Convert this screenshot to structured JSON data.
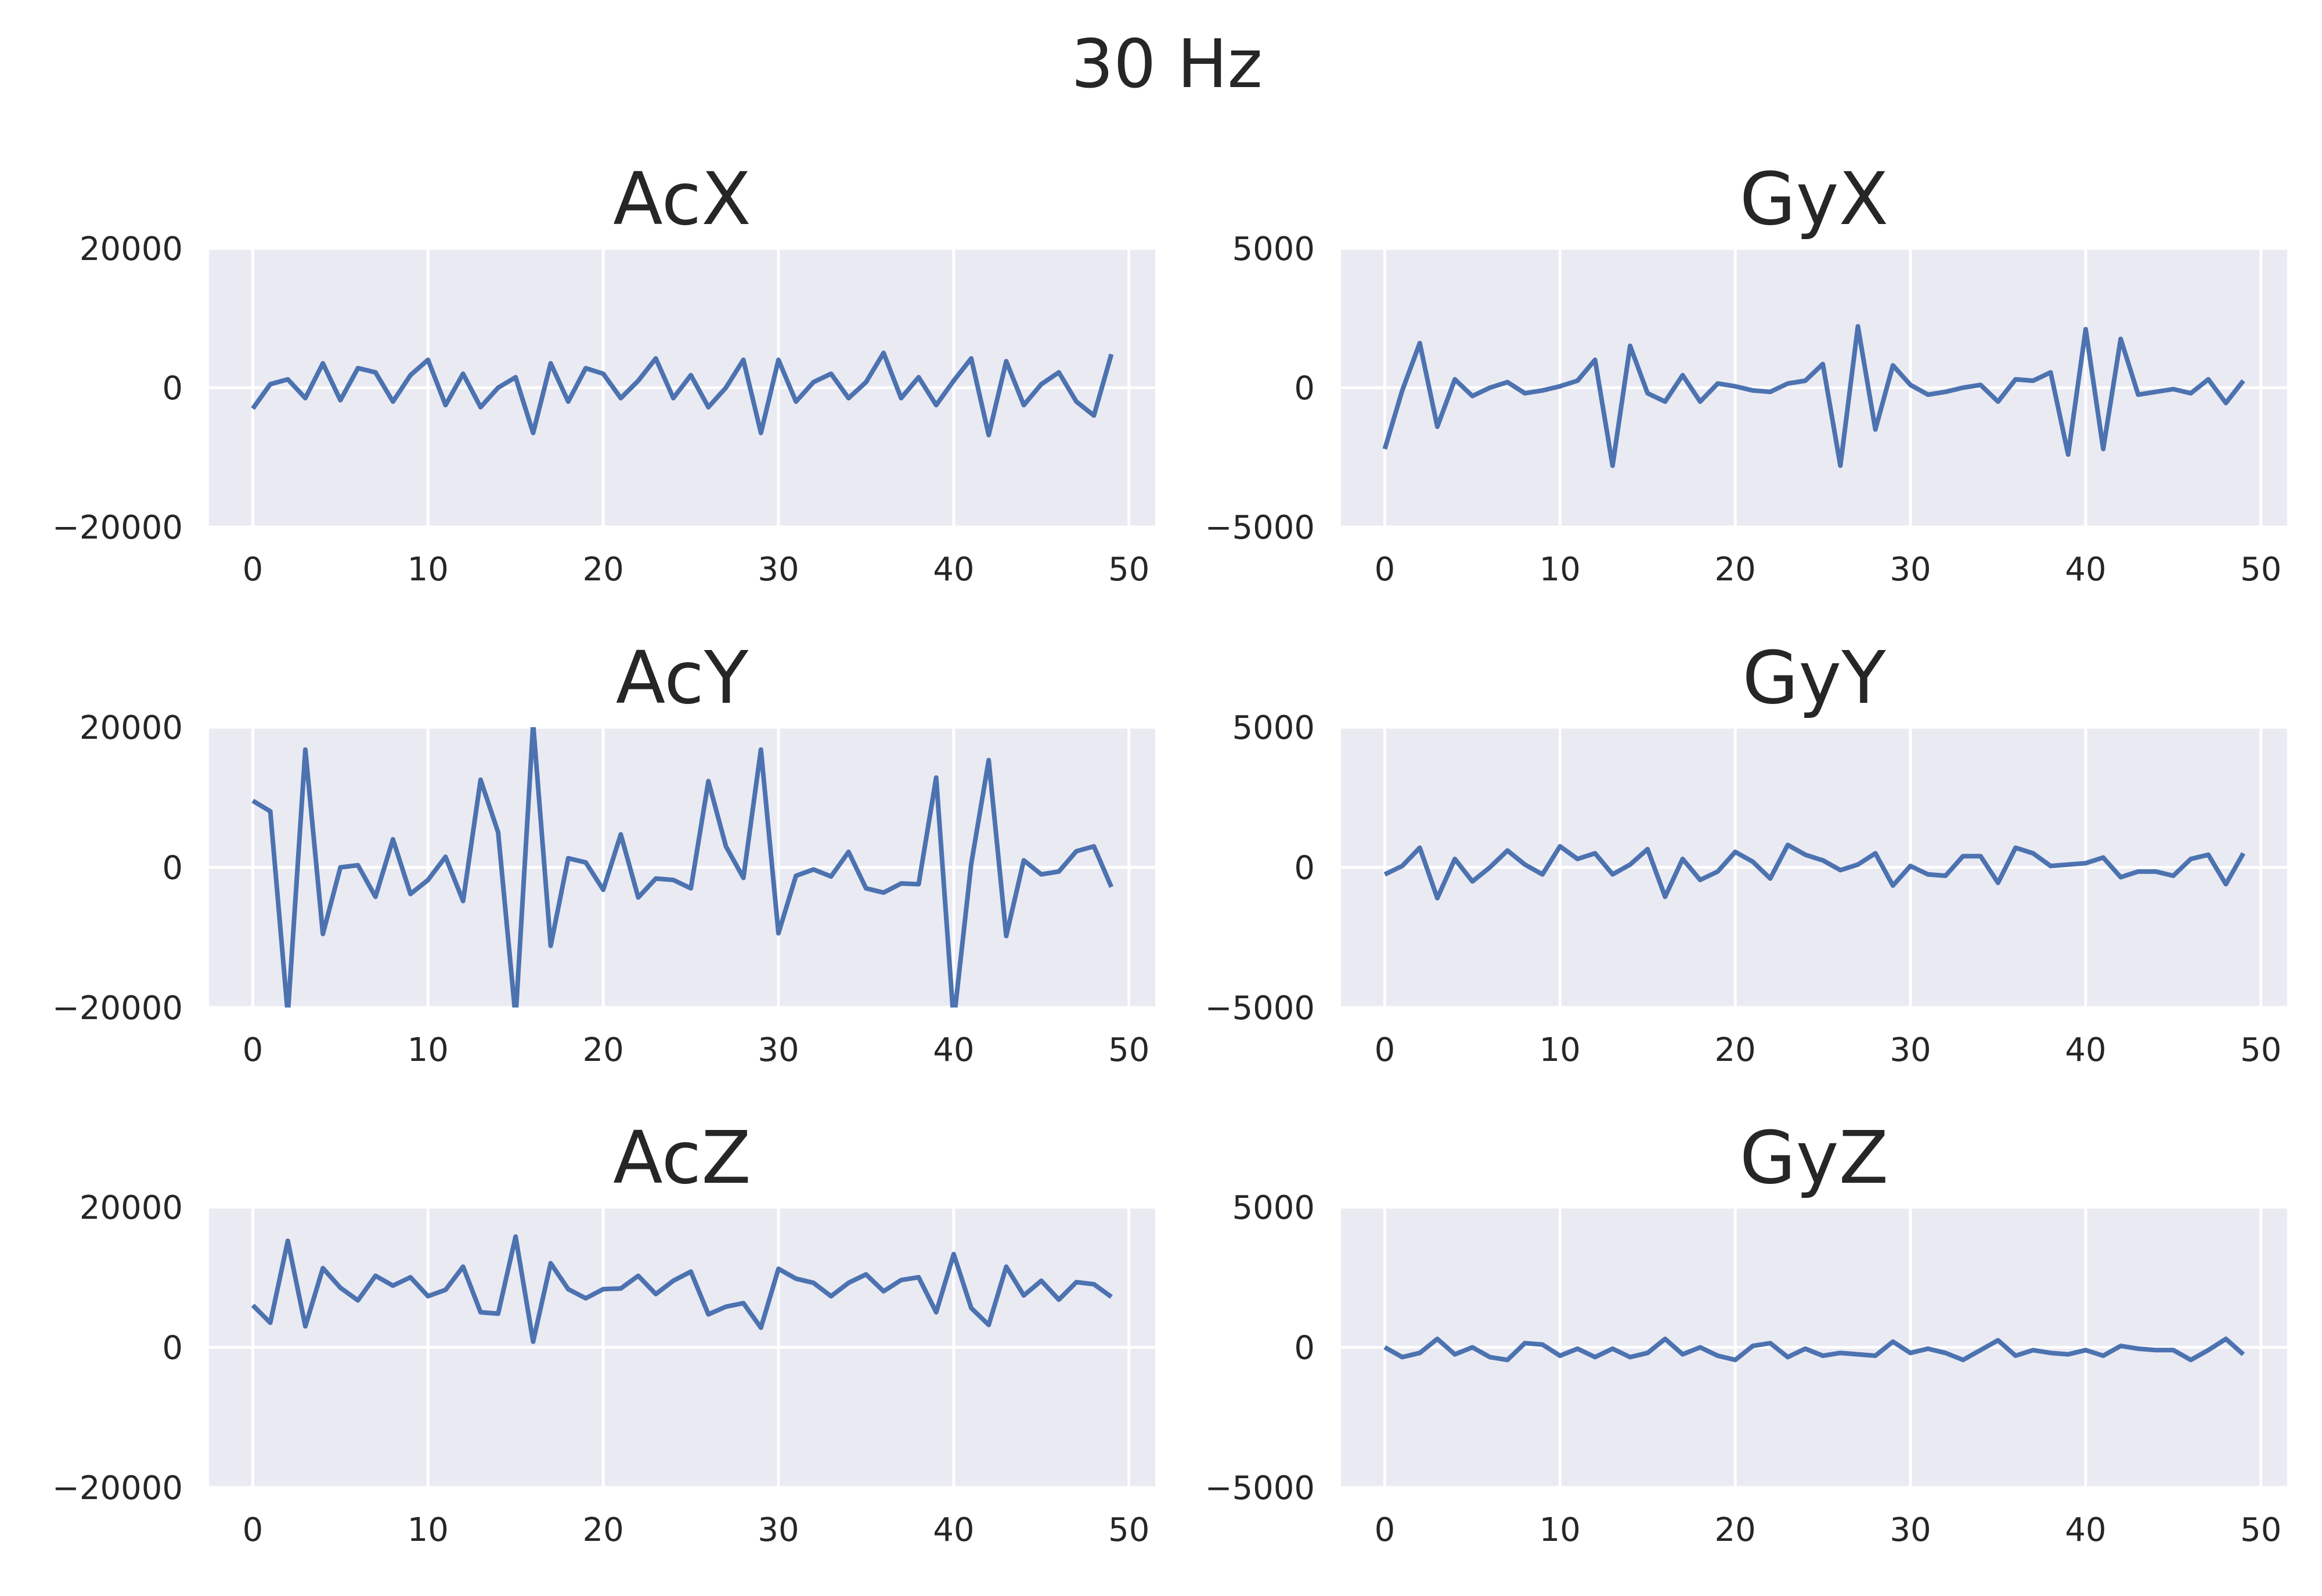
{
  "chart_data": {
    "type": "line",
    "title": "30 Hz",
    "subplots": [
      {
        "title": "AcX",
        "xticks": [
          0,
          10,
          20,
          30,
          40,
          50
        ],
        "yticks": [
          -20000,
          0,
          20000
        ],
        "ytick_labels": [
          "−20000",
          "0",
          "20000"
        ],
        "xlim": [
          -2.5,
          51.5
        ],
        "ylim": [
          -20000,
          20000
        ],
        "grid": true,
        "x": [
          0,
          1,
          2,
          3,
          4,
          5,
          6,
          7,
          8,
          9,
          10,
          11,
          12,
          13,
          14,
          15,
          16,
          17,
          18,
          19,
          20,
          21,
          22,
          23,
          24,
          25,
          26,
          27,
          28,
          29,
          30,
          31,
          32,
          33,
          34,
          35,
          36,
          37,
          38,
          39,
          40,
          41,
          42,
          43,
          44,
          45,
          46,
          47,
          48,
          49
        ],
        "values": [
          -3000,
          500,
          1200,
          -1500,
          3500,
          -1800,
          2800,
          2200,
          -2000,
          1800,
          4000,
          -2500,
          2000,
          -2800,
          0,
          1500,
          -6500,
          3500,
          -2000,
          2800,
          2000,
          -1500,
          1000,
          4200,
          -1500,
          1800,
          -2800,
          0,
          4000,
          -6500,
          4000,
          -2000,
          800,
          2000,
          -1500,
          800,
          5000,
          -1500,
          1500,
          -2500,
          1000,
          4200,
          -6800,
          3800,
          -2500,
          500,
          2200,
          -2000,
          -4000,
          4800
        ]
      },
      {
        "title": "GyX",
        "xticks": [
          0,
          10,
          20,
          30,
          40,
          50
        ],
        "yticks": [
          -5000,
          0,
          5000
        ],
        "ytick_labels": [
          "−5000",
          "0",
          "5000"
        ],
        "xlim": [
          -2.5,
          51.5
        ],
        "ylim": [
          -5000,
          5000
        ],
        "grid": true,
        "x": [
          0,
          1,
          2,
          3,
          4,
          5,
          6,
          7,
          8,
          9,
          10,
          11,
          12,
          13,
          14,
          15,
          16,
          17,
          18,
          19,
          20,
          21,
          22,
          23,
          24,
          25,
          26,
          27,
          28,
          29,
          30,
          31,
          32,
          33,
          34,
          35,
          36,
          37,
          38,
          39,
          40,
          41,
          42,
          43,
          44,
          45,
          46,
          47,
          48,
          49
        ],
        "values": [
          -2200,
          -100,
          1600,
          -1400,
          300,
          -300,
          0,
          200,
          -200,
          -100,
          50,
          250,
          1000,
          -2800,
          1500,
          -200,
          -500,
          450,
          -500,
          150,
          50,
          -100,
          -150,
          150,
          250,
          850,
          -2800,
          2200,
          -1500,
          800,
          100,
          -250,
          -150,
          0,
          100,
          -500,
          300,
          250,
          550,
          -2400,
          2100,
          -2200,
          1750,
          -250,
          -150,
          -50,
          -200,
          300,
          -550,
          250
        ]
      },
      {
        "title": "AcY",
        "xticks": [
          0,
          10,
          20,
          30,
          40,
          50
        ],
        "yticks": [
          -20000,
          0,
          20000
        ],
        "ytick_labels": [
          "−20000",
          "0",
          "20000"
        ],
        "xlim": [
          -2.5,
          51.5
        ],
        "ylim": [
          -20000,
          20000
        ],
        "grid": true,
        "x": [
          0,
          1,
          2,
          3,
          4,
          5,
          6,
          7,
          8,
          9,
          10,
          11,
          12,
          13,
          14,
          15,
          16,
          17,
          18,
          19,
          20,
          21,
          22,
          23,
          24,
          25,
          26,
          27,
          28,
          29,
          30,
          31,
          32,
          33,
          34,
          35,
          36,
          37,
          38,
          39,
          40,
          41,
          42,
          43,
          44,
          45,
          46,
          47,
          48,
          49
        ],
        "values": [
          9500,
          8000,
          -21000,
          16800,
          -9500,
          0,
          300,
          -4200,
          4000,
          -3800,
          -1800,
          1500,
          -4800,
          12500,
          5000,
          -21500,
          20500,
          -11200,
          1300,
          700,
          -3200,
          4700,
          -4300,
          -1600,
          -1800,
          -3000,
          12300,
          3000,
          -1500,
          16800,
          -9400,
          -1200,
          -300,
          -1300,
          2200,
          -3000,
          -3600,
          -2300,
          -2400,
          12800,
          -22000,
          500,
          15300,
          -9800,
          1000,
          -1000,
          -600,
          2300,
          3000,
          -2800
        ]
      },
      {
        "title": "GyY",
        "xticks": [
          0,
          10,
          20,
          30,
          40,
          50
        ],
        "yticks": [
          -5000,
          0,
          5000
        ],
        "ytick_labels": [
          "−5000",
          "0",
          "5000"
        ],
        "xlim": [
          -2.5,
          51.5
        ],
        "ylim": [
          -5000,
          5000
        ],
        "grid": true,
        "x": [
          0,
          1,
          2,
          3,
          4,
          5,
          6,
          7,
          8,
          9,
          10,
          11,
          12,
          13,
          14,
          15,
          16,
          17,
          18,
          19,
          20,
          21,
          22,
          23,
          24,
          25,
          26,
          27,
          28,
          29,
          30,
          31,
          32,
          33,
          34,
          35,
          36,
          37,
          38,
          39,
          40,
          41,
          42,
          43,
          44,
          45,
          46,
          47,
          48,
          49
        ],
        "values": [
          -250,
          50,
          700,
          -1100,
          300,
          -500,
          0,
          600,
          100,
          -250,
          750,
          300,
          500,
          -250,
          100,
          650,
          -1050,
          300,
          -450,
          -150,
          550,
          200,
          -400,
          800,
          450,
          250,
          -100,
          100,
          500,
          -650,
          50,
          -250,
          -300,
          400,
          400,
          -550,
          700,
          500,
          50,
          100,
          150,
          350,
          -350,
          -150,
          -150,
          -300,
          300,
          450,
          -600,
          500
        ]
      },
      {
        "title": "AcZ",
        "xticks": [
          0,
          10,
          20,
          30,
          40,
          50
        ],
        "yticks": [
          -20000,
          0,
          20000
        ],
        "ytick_labels": [
          "−20000",
          "0",
          "20000"
        ],
        "xlim": [
          -2.5,
          51.5
        ],
        "ylim": [
          -20000,
          20000
        ],
        "grid": true,
        "x": [
          0,
          1,
          2,
          3,
          4,
          5,
          6,
          7,
          8,
          9,
          10,
          11,
          12,
          13,
          14,
          15,
          16,
          17,
          18,
          19,
          20,
          21,
          22,
          23,
          24,
          25,
          26,
          27,
          28,
          29,
          30,
          31,
          32,
          33,
          34,
          35,
          36,
          37,
          38,
          39,
          40,
          41,
          42,
          43,
          44,
          45,
          46,
          47,
          48,
          49
        ],
        "values": [
          6000,
          3500,
          15200,
          3000,
          11300,
          8500,
          6700,
          10200,
          8800,
          10000,
          7300,
          8200,
          11500,
          5000,
          4800,
          15800,
          800,
          12000,
          8300,
          7000,
          8300,
          8400,
          10200,
          7600,
          9500,
          10800,
          4700,
          5800,
          6300,
          2800,
          11200,
          9800,
          9200,
          7300,
          9200,
          10400,
          8000,
          9600,
          10000,
          5000,
          13300,
          5600,
          3200,
          11500,
          7400,
          9500,
          6800,
          9300,
          9000,
          7200
        ]
      },
      {
        "title": "GyZ",
        "xticks": [
          0,
          10,
          20,
          30,
          40,
          50
        ],
        "yticks": [
          -5000,
          0,
          5000
        ],
        "ytick_labels": [
          "−5000",
          "0",
          "5000"
        ],
        "xlim": [
          -2.5,
          51.5
        ],
        "ylim": [
          -5000,
          5000
        ],
        "grid": true,
        "x": [
          0,
          1,
          2,
          3,
          4,
          5,
          6,
          7,
          8,
          9,
          10,
          11,
          12,
          13,
          14,
          15,
          16,
          17,
          18,
          19,
          20,
          21,
          22,
          23,
          24,
          25,
          26,
          27,
          28,
          29,
          30,
          31,
          32,
          33,
          34,
          35,
          36,
          37,
          38,
          39,
          40,
          41,
          42,
          43,
          44,
          45,
          46,
          47,
          48,
          49
        ],
        "values": [
          0,
          -350,
          -200,
          300,
          -250,
          0,
          -350,
          -450,
          150,
          100,
          -300,
          -50,
          -350,
          -50,
          -350,
          -200,
          300,
          -250,
          0,
          -300,
          -450,
          50,
          150,
          -350,
          -50,
          -300,
          -200,
          -250,
          -300,
          200,
          -200,
          -50,
          -200,
          -450,
          -100,
          250,
          -300,
          -100,
          -200,
          -250,
          -100,
          -300,
          50,
          -50,
          -100,
          -100,
          -450,
          -100,
          300,
          -250
        ]
      }
    ]
  }
}
